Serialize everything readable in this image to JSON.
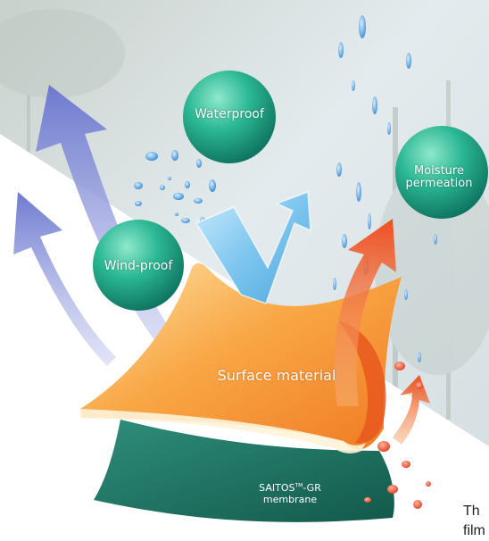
{
  "bubbles": {
    "waterproof": "Waterproof",
    "windproof": "Wind-proof",
    "moisture_line1": "Moisture",
    "moisture_line2": "permeation"
  },
  "layers": {
    "surface": "Surface material",
    "membrane_prefix": "SAITOS",
    "membrane_tm": "TM",
    "membrane_suffix": "-GR",
    "membrane_line2": "membrane"
  },
  "caption": {
    "line1": "Th",
    "line2": "film"
  },
  "colors": {
    "bubble": "#1fa38a",
    "surface": "#f6943a",
    "membrane": "#1a7060",
    "wind_arrow": "#8a93d6",
    "water_arrow": "#7fc4ec",
    "moisture_arrow": "#ef5a2a",
    "water_drop": "#3c8fd8",
    "vapor_dot": "#e8452a"
  }
}
